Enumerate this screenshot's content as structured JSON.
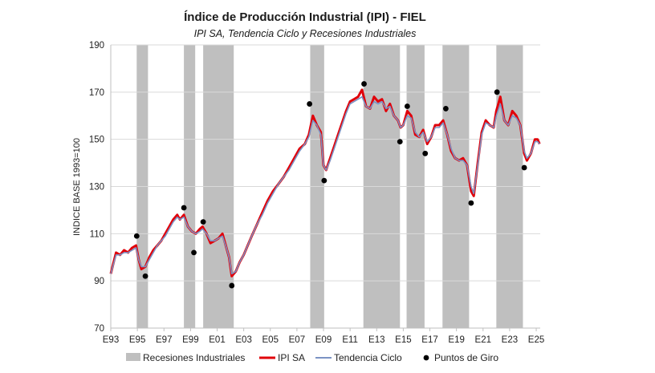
{
  "chart_data": {
    "type": "line",
    "title": "Índice de Producción Industrial (IPI) - FIEL",
    "subtitle": "IPI SA, Tendencia Ciclo y Recesiones Industriales",
    "xlabel": "",
    "ylabel": "INDICE BASE 1993=100",
    "ylim": [
      70,
      190
    ],
    "yticks": [
      70,
      90,
      110,
      130,
      150,
      170,
      190
    ],
    "xlim": [
      1993.0,
      2025.3
    ],
    "xticks": [
      {
        "label": "E93",
        "x": 1993
      },
      {
        "label": "E95",
        "x": 1995
      },
      {
        "label": "E97",
        "x": 1997
      },
      {
        "label": "E99",
        "x": 1999
      },
      {
        "label": "E01",
        "x": 2001
      },
      {
        "label": "E03",
        "x": 2003
      },
      {
        "label": "E05",
        "x": 2005
      },
      {
        "label": "E07",
        "x": 2007
      },
      {
        "label": "E09",
        "x": 2009
      },
      {
        "label": "E11",
        "x": 2011
      },
      {
        "label": "E13",
        "x": 2013
      },
      {
        "label": "E15",
        "x": 2015
      },
      {
        "label": "E17",
        "x": 2017
      },
      {
        "label": "E19",
        "x": 2019
      },
      {
        "label": "E21",
        "x": 2021
      },
      {
        "label": "E23",
        "x": 2023
      },
      {
        "label": "E25",
        "x": 2025
      }
    ],
    "grid": "horizontal",
    "legend_placement": "bottom",
    "recessions": [
      [
        1994.95,
        1995.8
      ],
      [
        1998.5,
        1999.35
      ],
      [
        1999.95,
        2002.25
      ],
      [
        2008.0,
        2009.05
      ],
      [
        2012.0,
        2014.75
      ],
      [
        2015.25,
        2016.6
      ],
      [
        2017.95,
        2019.95
      ],
      [
        2022.0,
        2024.0
      ]
    ],
    "series": [
      {
        "name": "IPI SA",
        "color": "#e0000a",
        "x": [
          1993.0,
          1993.4,
          1993.7,
          1994.0,
          1994.3,
          1994.6,
          1994.9,
          1995.1,
          1995.3,
          1995.6,
          1995.9,
          1996.2,
          1996.5,
          1996.8,
          1997.1,
          1997.4,
          1997.7,
          1998.0,
          1998.2,
          1998.5,
          1998.8,
          1999.1,
          1999.4,
          1999.7,
          1999.9,
          2000.2,
          2000.5,
          2000.8,
          2001.1,
          2001.4,
          2001.7,
          2001.9,
          2002.1,
          2002.4,
          2002.7,
          2003.0,
          2003.3,
          2003.6,
          2004.0,
          2004.4,
          2004.8,
          2005.2,
          2005.6,
          2006.0,
          2006.4,
          2006.8,
          2007.2,
          2007.6,
          2007.9,
          2008.2,
          2008.5,
          2008.8,
          2009.0,
          2009.2,
          2009.5,
          2009.8,
          2010.1,
          2010.4,
          2010.7,
          2011.0,
          2011.3,
          2011.6,
          2011.9,
          2012.2,
          2012.5,
          2012.8,
          2013.1,
          2013.4,
          2013.7,
          2014.0,
          2014.3,
          2014.6,
          2014.8,
          2015.0,
          2015.3,
          2015.6,
          2015.9,
          2016.2,
          2016.5,
          2016.8,
          2017.1,
          2017.4,
          2017.7,
          2018.0,
          2018.3,
          2018.6,
          2018.9,
          2019.2,
          2019.5,
          2019.8,
          2020.1,
          2020.3,
          2020.6,
          2020.9,
          2021.2,
          2021.5,
          2021.8,
          2022.0,
          2022.3,
          2022.6,
          2022.9,
          2023.2,
          2023.5,
          2023.8,
          2024.1,
          2024.3,
          2024.6,
          2024.9,
          2025.1,
          2025.25
        ],
        "y": [
          93,
          102,
          101,
          103,
          102,
          104,
          105,
          99,
          95,
          96,
          100,
          103,
          105,
          107,
          110,
          113,
          116,
          118,
          116,
          118,
          113,
          111,
          110,
          112,
          113,
          110,
          106,
          107,
          108,
          110,
          104,
          100,
          92,
          94,
          98,
          101,
          105,
          109,
          114,
          119,
          124,
          128,
          131,
          134,
          138,
          142,
          146,
          148,
          152,
          160,
          156,
          153,
          139,
          137,
          142,
          147,
          152,
          157,
          162,
          166,
          167,
          168,
          171,
          164,
          163,
          168,
          166,
          167,
          162,
          165,
          160,
          158,
          155,
          156,
          162,
          160,
          152,
          151,
          154,
          148,
          151,
          156,
          156,
          158,
          152,
          145,
          142,
          141,
          142,
          139,
          128,
          126,
          140,
          153,
          158,
          156,
          155,
          162,
          168,
          158,
          156,
          162,
          160,
          156,
          144,
          141,
          144,
          150,
          150,
          148
        ]
      },
      {
        "name": "Tendencia Ciclo",
        "color": "#7b93c4",
        "x": [
          1993.0,
          1993.4,
          1993.7,
          1994.0,
          1994.3,
          1994.6,
          1994.9,
          1995.1,
          1995.3,
          1995.6,
          1995.9,
          1996.2,
          1996.5,
          1996.8,
          1997.1,
          1997.4,
          1997.7,
          1998.0,
          1998.2,
          1998.5,
          1998.8,
          1999.1,
          1999.4,
          1999.7,
          1999.9,
          2000.2,
          2000.5,
          2000.8,
          2001.1,
          2001.4,
          2001.7,
          2001.9,
          2002.1,
          2002.4,
          2002.7,
          2003.0,
          2003.3,
          2003.6,
          2004.0,
          2004.4,
          2004.8,
          2005.2,
          2005.6,
          2006.0,
          2006.4,
          2006.8,
          2007.2,
          2007.6,
          2007.9,
          2008.2,
          2008.5,
          2008.8,
          2009.0,
          2009.2,
          2009.5,
          2009.8,
          2010.1,
          2010.4,
          2010.7,
          2011.0,
          2011.3,
          2011.6,
          2011.9,
          2012.2,
          2012.5,
          2012.8,
          2013.1,
          2013.4,
          2013.7,
          2014.0,
          2014.3,
          2014.6,
          2014.8,
          2015.0,
          2015.3,
          2015.6,
          2015.9,
          2016.2,
          2016.5,
          2016.8,
          2017.1,
          2017.4,
          2017.7,
          2018.0,
          2018.3,
          2018.6,
          2018.9,
          2019.2,
          2019.5,
          2019.8,
          2020.1,
          2020.3,
          2020.6,
          2020.9,
          2021.2,
          2021.5,
          2021.8,
          2022.0,
          2022.3,
          2022.6,
          2022.9,
          2023.2,
          2023.5,
          2023.8,
          2024.1,
          2024.3,
          2024.6,
          2024.9,
          2025.1,
          2025.25
        ],
        "y": [
          93,
          101,
          101,
          102,
          102,
          103,
          104,
          99,
          96,
          96,
          99,
          102,
          105,
          107,
          109,
          112,
          115,
          117,
          116,
          117,
          113,
          111,
          110,
          111,
          112,
          110,
          107,
          107,
          108,
          109,
          104,
          100,
          93,
          94,
          98,
          101,
          105,
          109,
          114,
          118,
          123,
          127,
          131,
          134,
          137,
          141,
          145,
          148,
          151,
          158,
          156,
          152,
          139,
          137,
          141,
          146,
          151,
          156,
          161,
          165,
          166,
          167,
          168,
          164,
          163,
          166,
          165,
          166,
          163,
          164,
          160,
          158,
          155,
          156,
          160,
          159,
          153,
          151,
          153,
          149,
          151,
          155,
          155,
          157,
          152,
          146,
          142,
          141,
          141,
          139,
          130,
          127,
          139,
          152,
          157,
          156,
          155,
          160,
          165,
          158,
          156,
          160,
          159,
          156,
          145,
          142,
          144,
          149,
          149,
          148
        ]
      }
    ],
    "turning_points": {
      "name": "Puntos de Giro",
      "x": [
        1994.95,
        1995.6,
        1998.5,
        1999.25,
        1999.95,
        2002.1,
        2007.95,
        2009.05,
        2012.05,
        2014.75,
        2015.3,
        2016.65,
        2018.2,
        2020.1,
        2022.05,
        2024.1
      ],
      "y": [
        109,
        92,
        121,
        102,
        115,
        88,
        165,
        132.5,
        173.5,
        149,
        164,
        144,
        163,
        123,
        170,
        138
      ]
    },
    "legend": [
      "Recesiones Industriales",
      "IPI SA",
      "Tendencia Ciclo",
      "Puntos de Giro"
    ]
  }
}
